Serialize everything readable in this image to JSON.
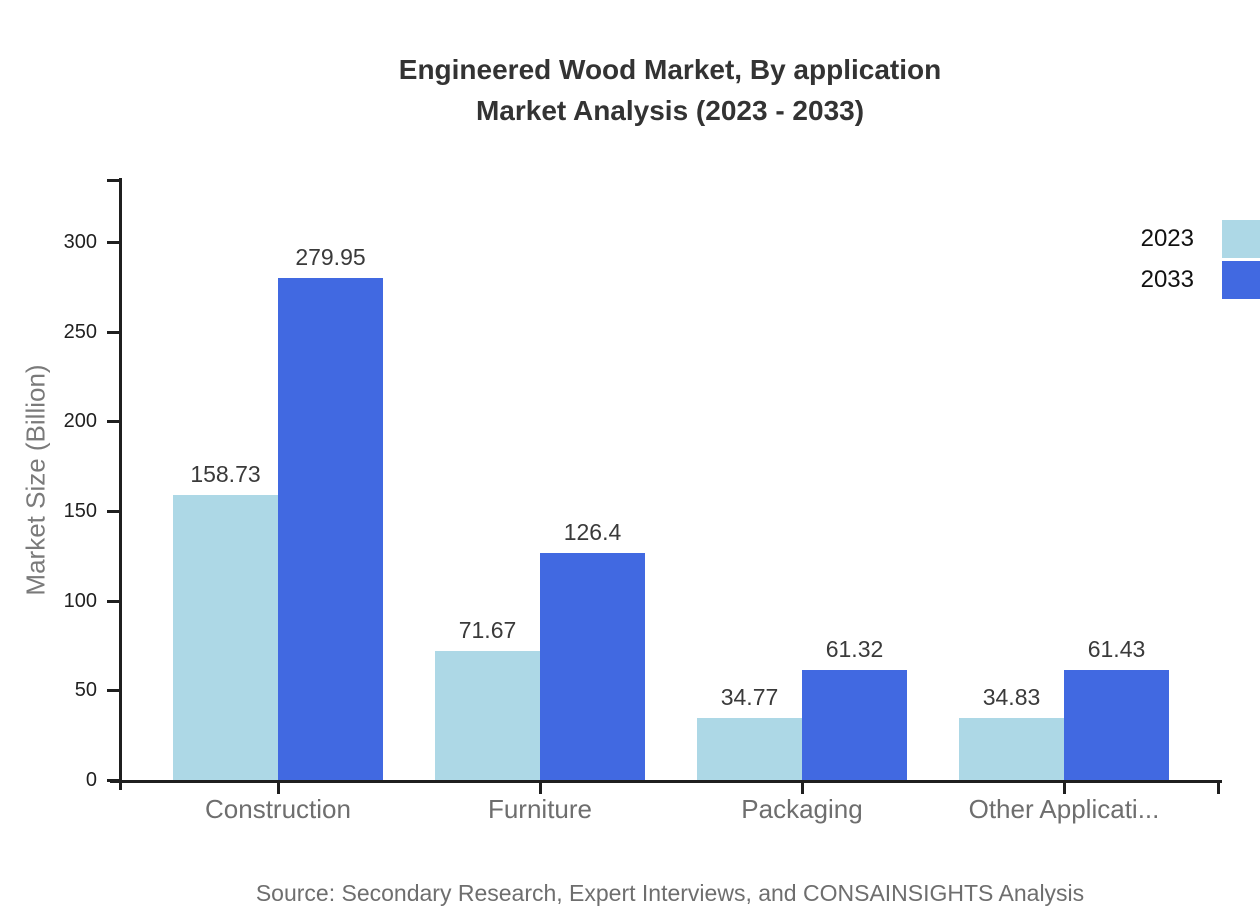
{
  "title": {
    "line1": "Engineered Wood Market, By application",
    "line2": "Market Analysis (2023 - 2033)"
  },
  "source": "Source: Secondary Research, Expert Interviews, and CONSAINSIGHTS Analysis",
  "legend": {
    "position": "top-right",
    "items": [
      {
        "label": "2023",
        "color": "#ADD8E6"
      },
      {
        "label": "2033",
        "color": "#4169E1"
      }
    ]
  },
  "chart_data": {
    "type": "bar",
    "title": "Engineered Wood Market, By application Market Analysis (2023 - 2033)",
    "categories": [
      "Construction",
      "Furniture",
      "Packaging",
      "Other Applicati..."
    ],
    "series": [
      {
        "name": "2023",
        "color": "#ADD8E6",
        "values": [
          158.73,
          71.67,
          34.77,
          34.83
        ]
      },
      {
        "name": "2033",
        "color": "#4169E1",
        "values": [
          279.95,
          126.4,
          61.32,
          61.43
        ]
      }
    ],
    "xlabel": "",
    "ylabel": "Market Size (Billion)",
    "yticks": [
      0,
      50,
      100,
      150,
      200,
      250,
      300
    ],
    "ylim": [
      0,
      336
    ],
    "grid": false,
    "value_labels": true,
    "axis_color": "#1f1f1f"
  }
}
